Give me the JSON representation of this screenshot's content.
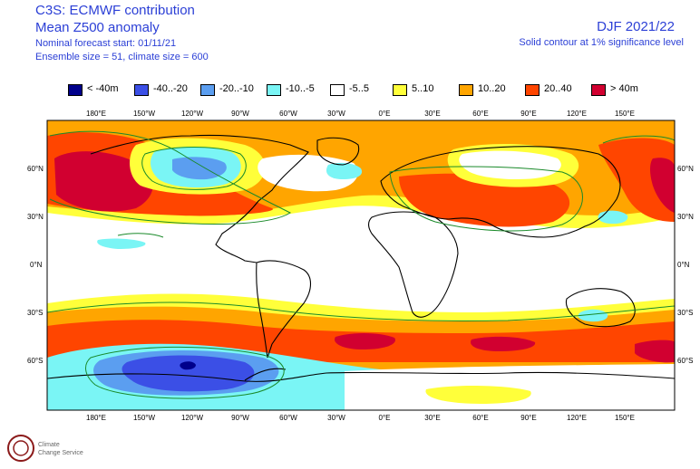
{
  "header": {
    "line1": "C3S: ECMWF contribution",
    "line2": "Mean Z500 anomaly",
    "line3": "Nominal forecast start: 01/11/21",
    "line4": "Ensemble size = 51, climate size = 600",
    "season": "DJF 2021/22",
    "significance": "Solid contour at 1% significance level"
  },
  "legend": [
    {
      "label": "< -40m",
      "color": "#00008b"
    },
    {
      "label": "-40..-20",
      "color": "#3b4fe6"
    },
    {
      "label": "-20..-10",
      "color": "#5b9ef0"
    },
    {
      "label": "-10..-5",
      "color": "#7af5f5"
    },
    {
      "label": "-5..5",
      "color": "#ffffff"
    },
    {
      "label": "5..10",
      "color": "#ffff3a"
    },
    {
      "label": "10..20",
      "color": "#ffa500"
    },
    {
      "label": "20..40",
      "color": "#ff4500"
    },
    {
      "label": "> 40m",
      "color": "#d10030"
    }
  ],
  "axes": {
    "lon_labels": [
      "180°E",
      "150°W",
      "120°W",
      "90°W",
      "60°W",
      "30°W",
      "0°E",
      "30°E",
      "60°E",
      "90°E",
      "120°E",
      "150°E"
    ],
    "lat_labels": [
      "60°N",
      "30°N",
      "0°N",
      "30°S",
      "60°S"
    ]
  },
  "logo": {
    "line1": "Climate",
    "line2": "Change Service"
  }
}
